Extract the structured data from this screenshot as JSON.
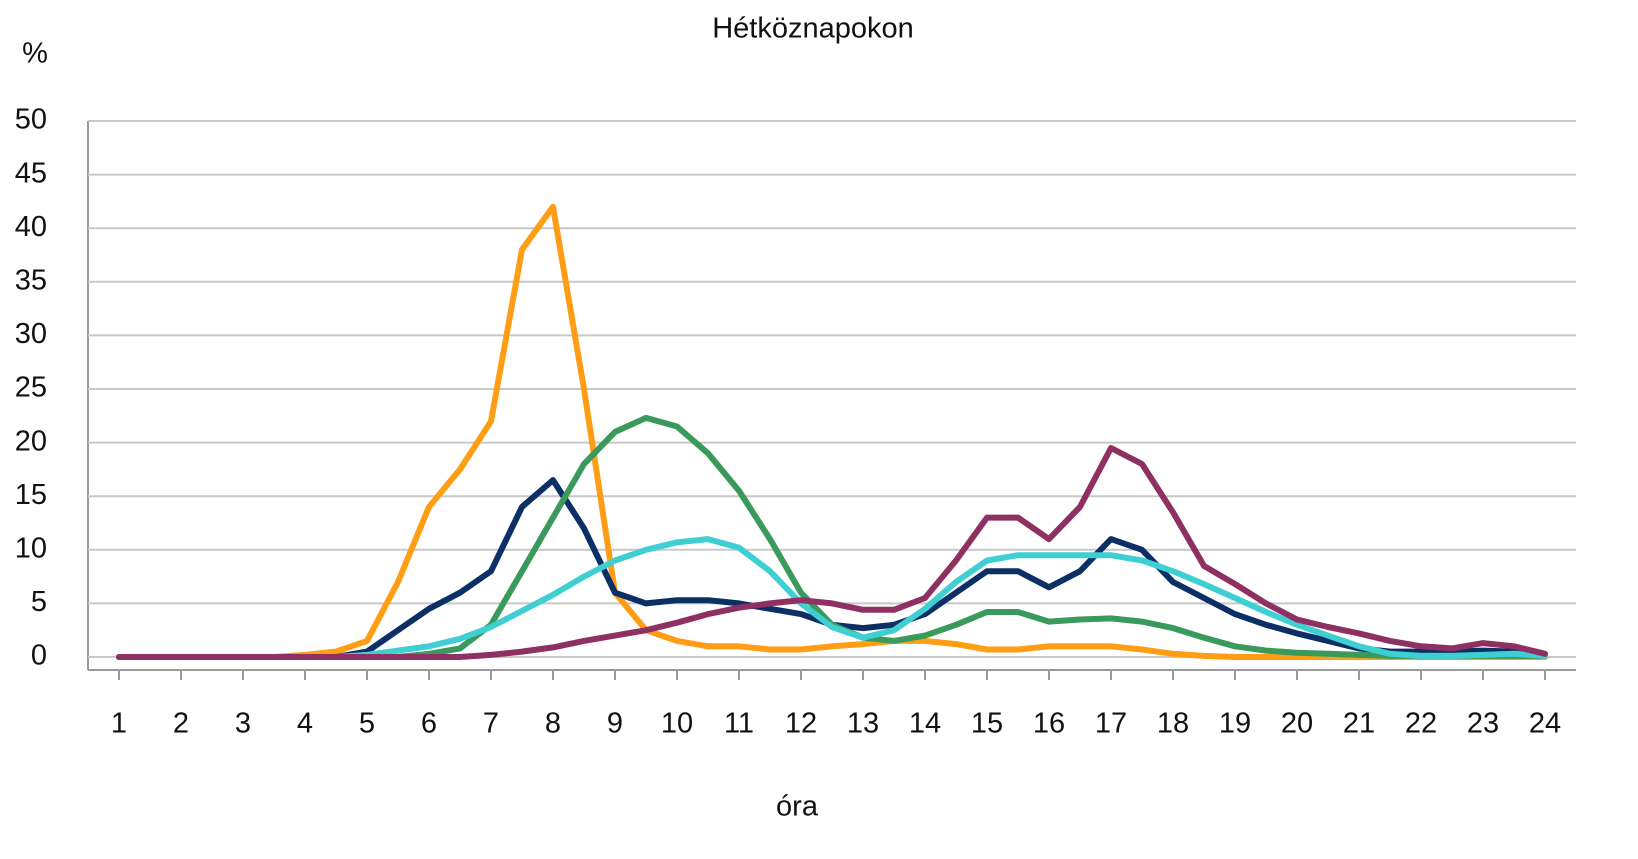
{
  "chart_data": {
    "type": "line",
    "title": "Hétköznapokon",
    "y_label": "%",
    "x_label": "óra",
    "xlim": [
      0.5,
      24.5
    ],
    "ylim": [
      0,
      50
    ],
    "xticks": [
      1,
      2,
      3,
      4,
      5,
      6,
      7,
      8,
      9,
      10,
      11,
      12,
      13,
      14,
      15,
      16,
      17,
      18,
      19,
      20,
      21,
      22,
      23,
      24
    ],
    "yticks": [
      0,
      5,
      10,
      15,
      20,
      25,
      30,
      35,
      40,
      45,
      50
    ],
    "grid": true,
    "x": [
      1,
      1.5,
      2,
      2.5,
      3,
      3.5,
      4,
      4.5,
      5,
      5.5,
      6,
      6.5,
      7,
      7.5,
      8,
      8.5,
      9,
      9.5,
      10,
      10.5,
      11,
      11.5,
      12,
      12.5,
      13,
      13.5,
      14,
      14.5,
      15,
      15.5,
      16,
      16.5,
      17,
      17.5,
      18,
      18.5,
      19,
      19.5,
      20,
      20.5,
      21,
      21.5,
      22,
      22.5,
      23,
      23.5,
      24
    ],
    "series": [
      {
        "color": "#ff9e14",
        "values": [
          0,
          0,
          0,
          0,
          0,
          0,
          0.2,
          0.5,
          1.5,
          7,
          14,
          17.5,
          22,
          38,
          42,
          25,
          6,
          2.5,
          1.5,
          1,
          1,
          0.7,
          0.7,
          1,
          1.2,
          1.5,
          1.5,
          1.2,
          0.7,
          0.7,
          1,
          1,
          1,
          0.7,
          0.3,
          0.1,
          0,
          0,
          0,
          0,
          0,
          0,
          0,
          0,
          0,
          0,
          0
        ]
      },
      {
        "color": "#0c2f66",
        "values": [
          0,
          0,
          0,
          0,
          0,
          0,
          0,
          0,
          0.5,
          2.5,
          4.5,
          6,
          8,
          14,
          16.5,
          12,
          6,
          5,
          5.3,
          5.3,
          5,
          4.5,
          4,
          3,
          2.7,
          3,
          4,
          6,
          8,
          8,
          6.5,
          8,
          11,
          10,
          7,
          5.5,
          4,
          3,
          2.2,
          1.5,
          0.8,
          0.5,
          0.5,
          0.5,
          0.6,
          0.5,
          0.2
        ]
      },
      {
        "color": "#3a9a5c",
        "values": [
          0,
          0,
          0,
          0,
          0,
          0,
          0,
          0,
          0,
          0,
          0.3,
          0.8,
          3,
          8,
          13,
          18,
          21,
          22.3,
          21.5,
          19,
          15.5,
          11,
          6,
          3,
          1.8,
          1.5,
          2,
          3,
          4.2,
          4.2,
          3.3,
          3.5,
          3.6,
          3.3,
          2.7,
          1.8,
          1,
          0.6,
          0.4,
          0.3,
          0.2,
          0.1,
          0.1,
          0.1,
          0.1,
          0.1,
          0.1
        ]
      },
      {
        "color": "#3fcfd3",
        "values": [
          0,
          0,
          0,
          0,
          0,
          0,
          0,
          0,
          0.2,
          0.6,
          1,
          1.7,
          2.8,
          4.3,
          5.8,
          7.5,
          9,
          10,
          10.7,
          11,
          10.2,
          8,
          5,
          2.8,
          1.8,
          2.5,
          4.5,
          7,
          9,
          9.5,
          9.5,
          9.5,
          9.5,
          9,
          8,
          6.8,
          5.5,
          4.2,
          3,
          2,
          1,
          0.3,
          0.1,
          0.1,
          0.2,
          0.3,
          0.1
        ]
      },
      {
        "color": "#8f3063",
        "values": [
          0,
          0,
          0,
          0,
          0,
          0,
          0,
          0,
          0,
          0,
          0,
          0,
          0.2,
          0.5,
          0.9,
          1.5,
          2,
          2.5,
          3.2,
          4,
          4.6,
          5,
          5.3,
          5,
          4.4,
          4.4,
          5.5,
          9,
          13,
          13,
          11,
          14,
          19.5,
          18,
          13.5,
          8.5,
          6.8,
          5,
          3.5,
          2.8,
          2.2,
          1.5,
          1,
          0.8,
          1.3,
          1,
          0.3
        ]
      }
    ]
  }
}
